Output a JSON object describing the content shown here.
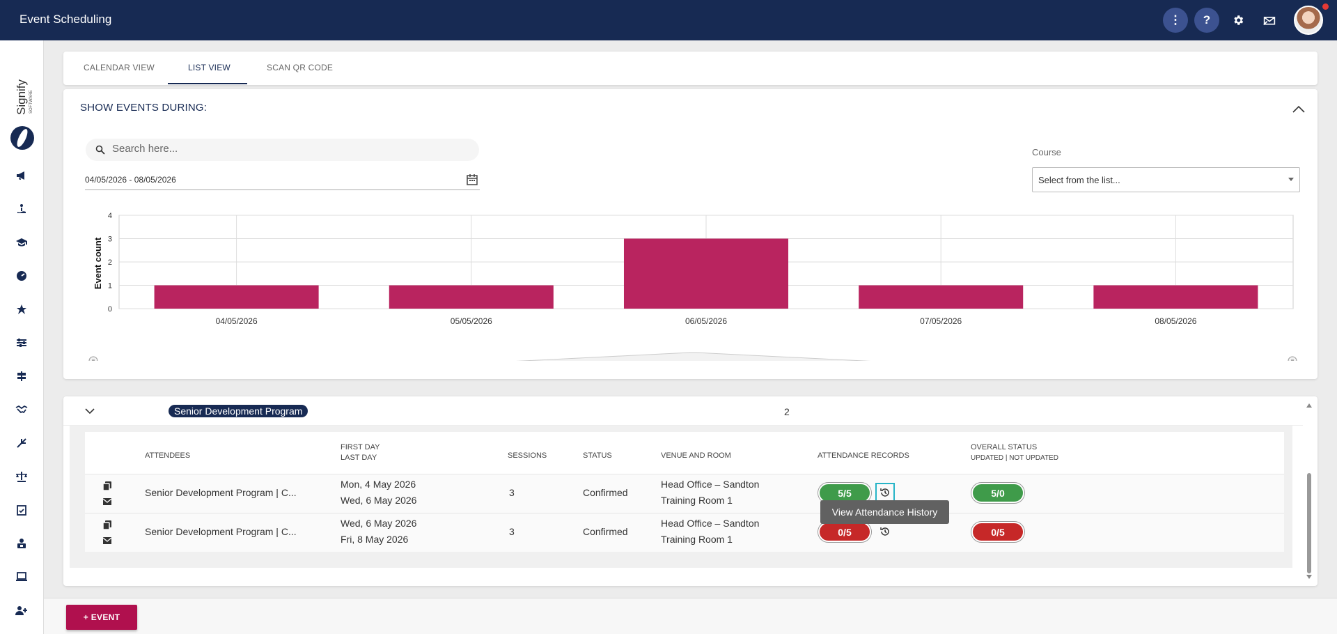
{
  "header": {
    "title": "Event Scheduling",
    "more_label": "⋮",
    "help_label": "?"
  },
  "sidebar": {
    "logo_text": "Signify",
    "logo_subtext": "SOFTWARE",
    "items": [
      "megaphone-icon",
      "person-wave-icon",
      "graduation-cap-icon",
      "dashboard-icon",
      "star-icon",
      "sliders-icon",
      "signpost-icon",
      "handshake-icon",
      "route-icon",
      "scale-icon",
      "checklist-icon",
      "person-badge-icon",
      "laptop-icon",
      "add-user-icon"
    ]
  },
  "tabs": [
    {
      "label": "CALENDAR VIEW"
    },
    {
      "label": "LIST VIEW"
    },
    {
      "label": "SCAN QR CODE"
    }
  ],
  "filters": {
    "section_title": "SHOW EVENTS DURING:",
    "search_placeholder": "Search here...",
    "date_range": "04/05/2026 - 08/05/2026",
    "course_label": "Course",
    "course_placeholder": "Select from the list..."
  },
  "chart_data": {
    "type": "bar",
    "categories": [
      "04/05/2026",
      "05/05/2026",
      "06/05/2026",
      "07/05/2026",
      "08/05/2026"
    ],
    "values": [
      1,
      1,
      3,
      1,
      1
    ],
    "ylabel": "Event count",
    "xlabel": "",
    "ylim": [
      0,
      4
    ],
    "yticks": [
      0,
      1,
      2,
      3,
      4
    ],
    "grid": true,
    "color": "#b9245f"
  },
  "events": {
    "group_name": "Senior Development Program",
    "group_count": "2",
    "columns": {
      "attendees": "ATTENDEES",
      "first_day": "FIRST DAY",
      "last_day": "LAST DAY",
      "sessions": "SESSIONS",
      "status": "STATUS",
      "venue": "VENUE AND ROOM",
      "attendance": "ATTENDANCE RECORDS",
      "overall": "OVERALL STATUS",
      "overall_sub": "UPDATED | NOT UPDATED"
    },
    "rows": [
      {
        "attendees": "Senior Development Program | C...",
        "first_day": "Mon, 4 May 2026",
        "last_day": "Wed, 6 May 2026",
        "sessions": "3",
        "status": "Confirmed",
        "venue": "Head Office – Sandton",
        "room": "Training Room 1",
        "attendance": "5/5",
        "overall": "5/0",
        "attendance_color": "#3f9b4a"
      },
      {
        "attendees": "Senior Development Program | C...",
        "first_day": "Wed, 6 May 2026",
        "last_day": "Fri, 8 May 2026",
        "sessions": "3",
        "status": "Confirmed",
        "venue": "Head Office – Sandton",
        "room": "Training Room 1",
        "attendance": "0/5",
        "overall": "0/5",
        "attendance_color": "#c62828"
      }
    ],
    "tooltip": "View Attendance History"
  },
  "bottom": {
    "add_event_label": "+ EVENT"
  }
}
